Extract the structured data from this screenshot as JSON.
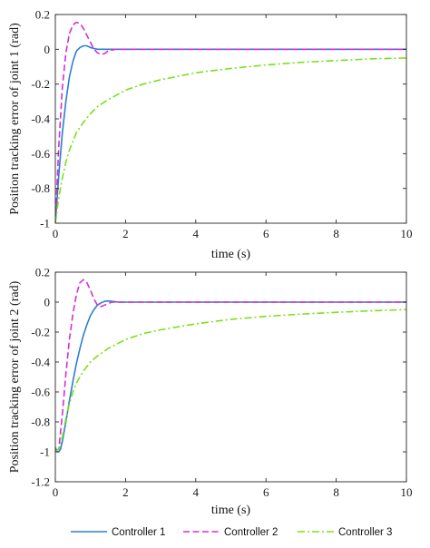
{
  "colors": {
    "background": "#ffffff",
    "axis": "#262626",
    "grid": "none"
  },
  "chart_data": [
    {
      "type": "line",
      "xlabel": "time (s)",
      "ylabel": "Position tracking error of joint 1 (rad)",
      "xlim": [
        0,
        10
      ],
      "ylim": [
        -1,
        0.2
      ],
      "xticks": [
        0,
        2,
        4,
        6,
        8,
        10
      ],
      "xtick_labels": [
        "0",
        "2",
        "4",
        "6",
        "8",
        "10"
      ],
      "yticks": [
        -1,
        -0.8,
        -0.6,
        -0.4,
        -0.2,
        0,
        0.2
      ],
      "ytick_labels": [
        "-1",
        "-0.8",
        "-0.6",
        "-0.4",
        "-0.2",
        "0",
        "0.2"
      ],
      "grid": false,
      "series": [
        {
          "name": "Controller 1",
          "color": "#2e7dd1",
          "dash": "solid",
          "x": [
            0,
            0.1,
            0.2,
            0.3,
            0.4,
            0.5,
            0.6,
            0.7,
            0.8,
            0.9,
            1.0,
            1.1,
            1.2,
            1.4,
            1.6,
            2,
            10
          ],
          "y": [
            -1,
            -0.72,
            -0.48,
            -0.3,
            -0.16,
            -0.07,
            -0.01,
            0.01,
            0.02,
            0.02,
            0.01,
            0.005,
            0,
            0,
            0,
            0,
            0
          ]
        },
        {
          "name": "Controller 2",
          "color": "#d62cd6",
          "dash": "dashed",
          "x": [
            0,
            0.1,
            0.2,
            0.3,
            0.4,
            0.5,
            0.6,
            0.7,
            0.8,
            0.9,
            1.0,
            1.1,
            1.2,
            1.3,
            1.4,
            1.5,
            1.7,
            2,
            10
          ],
          "y": [
            -1,
            -0.55,
            -0.22,
            -0.02,
            0.09,
            0.14,
            0.155,
            0.15,
            0.12,
            0.08,
            0.04,
            0.0,
            -0.02,
            -0.03,
            -0.025,
            -0.01,
            0,
            0,
            0
          ]
        },
        {
          "name": "Controller 3",
          "color": "#7be01a",
          "dash": "dashdot",
          "x": [
            0,
            0.1,
            0.2,
            0.3,
            0.4,
            0.5,
            0.6,
            0.8,
            1.0,
            1.2,
            1.5,
            2,
            2.5,
            3,
            4,
            5,
            6,
            7,
            8,
            9,
            10
          ],
          "y": [
            -1,
            -0.85,
            -0.74,
            -0.65,
            -0.58,
            -0.53,
            -0.48,
            -0.42,
            -0.37,
            -0.33,
            -0.29,
            -0.235,
            -0.2,
            -0.175,
            -0.135,
            -0.11,
            -0.09,
            -0.075,
            -0.065,
            -0.055,
            -0.05
          ]
        }
      ]
    },
    {
      "type": "line",
      "xlabel": "time (s)",
      "ylabel": "Position tracking error of joint 2 (rad)",
      "xlim": [
        0,
        10
      ],
      "ylim": [
        -1.2,
        0.2
      ],
      "xticks": [
        0,
        2,
        4,
        6,
        8,
        10
      ],
      "xtick_labels": [
        "0",
        "2",
        "4",
        "6",
        "8",
        "10"
      ],
      "yticks": [
        -1.2,
        -1,
        -0.8,
        -0.6,
        -0.4,
        -0.2,
        0,
        0.2
      ],
      "ytick_labels": [
        "-1.2",
        "-1",
        "-0.8",
        "-0.6",
        "-0.4",
        "-0.2",
        "0",
        "0.2"
      ],
      "grid": false,
      "series": [
        {
          "name": "Controller 1",
          "color": "#2e7dd1",
          "dash": "solid",
          "x": [
            0,
            0.05,
            0.1,
            0.15,
            0.2,
            0.3,
            0.4,
            0.5,
            0.6,
            0.7,
            0.8,
            0.9,
            1.0,
            1.1,
            1.2,
            1.3,
            1.4,
            1.5,
            1.6,
            1.7,
            1.8,
            2,
            10
          ],
          "y": [
            -0.97,
            -1.0,
            -1.0,
            -0.98,
            -0.93,
            -0.8,
            -0.66,
            -0.53,
            -0.41,
            -0.31,
            -0.22,
            -0.15,
            -0.09,
            -0.05,
            -0.02,
            -0.005,
            0.005,
            0.008,
            0.006,
            0.003,
            0,
            0,
            0
          ]
        },
        {
          "name": "Controller 2",
          "color": "#d62cd6",
          "dash": "dashed",
          "x": [
            0,
            0.1,
            0.2,
            0.3,
            0.4,
            0.5,
            0.6,
            0.7,
            0.8,
            0.9,
            1.0,
            1.1,
            1.2,
            1.3,
            1.4,
            1.6,
            1.8,
            2,
            10
          ],
          "y": [
            -1,
            -0.98,
            -0.75,
            -0.48,
            -0.25,
            -0.08,
            0.05,
            0.13,
            0.15,
            0.13,
            0.08,
            0.02,
            -0.02,
            -0.03,
            -0.02,
            0,
            0,
            0,
            0
          ]
        },
        {
          "name": "Controller 3",
          "color": "#7be01a",
          "dash": "dashdot",
          "x": [
            0,
            0.1,
            0.2,
            0.3,
            0.4,
            0.5,
            0.6,
            0.8,
            1.0,
            1.2,
            1.5,
            2,
            2.5,
            3,
            4,
            5,
            6,
            7,
            8,
            9,
            10
          ],
          "y": [
            -1,
            -0.98,
            -0.9,
            -0.78,
            -0.68,
            -0.6,
            -0.54,
            -0.46,
            -0.4,
            -0.36,
            -0.31,
            -0.25,
            -0.21,
            -0.185,
            -0.145,
            -0.115,
            -0.095,
            -0.08,
            -0.068,
            -0.058,
            -0.05
          ]
        }
      ]
    }
  ],
  "legend": {
    "placement": "bottom-center",
    "entries": [
      {
        "label": "Controller 1",
        "color": "#2e7dd1",
        "dash": "solid"
      },
      {
        "label": "Controller 2",
        "color": "#d62cd6",
        "dash": "dashed"
      },
      {
        "label": "Controller 3",
        "color": "#7be01a",
        "dash": "dashdot"
      }
    ]
  }
}
